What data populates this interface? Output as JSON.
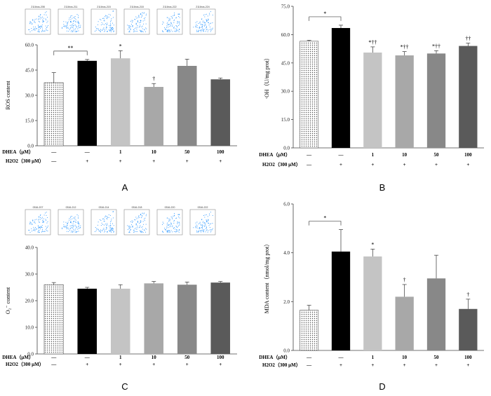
{
  "colors": {
    "control": "#ffffff",
    "h2o2": "#000000",
    "dhea1": "#c4c4c4",
    "dhea10": "#a8a8a8",
    "dhea50": "#888888",
    "dhea100": "#5a5a5a",
    "flow_dots": "#1e90ff"
  },
  "row_labels": {
    "dhea": "DHEA（μM）",
    "h2o2": "H2O2（300 μM）"
  },
  "dhea_row": [
    "—",
    "—",
    "1",
    "10",
    "50",
    "100"
  ],
  "h2o2_row": [
    "—",
    "+",
    "+",
    "+",
    "+",
    "+"
  ],
  "flow_labels_A": [
    "2116ros-208",
    "2116ros-211",
    "2116ros-215",
    "2116ros-218",
    "2116ros-222",
    "2116ros-224"
  ],
  "flow_labels_C": [
    "0316-207",
    "0316-212",
    "0316-214",
    "0316-218",
    "0316-220",
    "0316-222"
  ],
  "chart_data": [
    {
      "type": "bar",
      "panel": "A",
      "ylabel": "ROS content",
      "ylim": [
        0,
        60
      ],
      "yticks": [
        "0.0",
        "15.0",
        "30.0",
        "45.0",
        "60.0"
      ],
      "categories": [
        "Control",
        "H2O2",
        "DHEA 1",
        "DHEA 10",
        "DHEA 50",
        "DHEA 100"
      ],
      "values": [
        37.5,
        50.5,
        52,
        35,
        47.5,
        39.5
      ],
      "errors": [
        6,
        0.8,
        4.5,
        2,
        4,
        0.8
      ],
      "labels": [
        "",
        "",
        "*",
        "†",
        "",
        ""
      ],
      "bracket": {
        "from": 0,
        "to": 1,
        "label": "**"
      }
    },
    {
      "type": "bar",
      "panel": "B",
      "ylabel": "·OH（U/mg prot）",
      "ylim": [
        0,
        75
      ],
      "yticks": [
        "0.0",
        "15.0",
        "30.0",
        "45.0",
        "60.0",
        "75.0"
      ],
      "categories": [
        "Control",
        "H2O2",
        "DHEA 1",
        "DHEA 10",
        "DHEA 50",
        "DHEA 100"
      ],
      "values": [
        56.5,
        63.5,
        50.5,
        49,
        50,
        54
      ],
      "errors": [
        0.5,
        1.5,
        3,
        2,
        1.5,
        1.5
      ],
      "labels": [
        "",
        "",
        "*††",
        "*††",
        "*††",
        "††"
      ],
      "bracket": {
        "from": 0,
        "to": 1,
        "label": "*"
      }
    },
    {
      "type": "bar",
      "panel": "C",
      "ylabel": "O₂⁻ content",
      "ylim": [
        0,
        40
      ],
      "yticks": [
        "0.0",
        "10.0",
        "20.0",
        "30.0",
        "40.0"
      ],
      "categories": [
        "Control",
        "H2O2",
        "DHEA 1",
        "DHEA 10",
        "DHEA 50",
        "DHEA 100"
      ],
      "values": [
        26,
        24.5,
        24.5,
        26.5,
        26,
        26.8
      ],
      "errors": [
        0.8,
        0.5,
        1.5,
        0.7,
        1,
        0.4
      ],
      "labels": [
        "",
        "",
        "",
        "",
        "",
        ""
      ],
      "bracket": null
    },
    {
      "type": "bar",
      "panel": "D",
      "ylabel": "MDA content（nmol/mg prot）",
      "ylim": [
        0,
        6
      ],
      "yticks": [
        "0.0",
        "2.0",
        "4.0",
        "6.0"
      ],
      "categories": [
        "Control",
        "H2O2",
        "DHEA 1",
        "DHEA 10",
        "DHEA 50",
        "DHEA 100"
      ],
      "values": [
        1.65,
        4.05,
        3.85,
        2.2,
        2.95,
        1.7
      ],
      "errors": [
        0.2,
        0.9,
        0.3,
        0.5,
        0.95,
        0.4
      ],
      "labels": [
        "",
        "",
        "*",
        "†",
        "",
        "†"
      ],
      "bracket": {
        "from": 0,
        "to": 1,
        "label": "*"
      }
    }
  ]
}
